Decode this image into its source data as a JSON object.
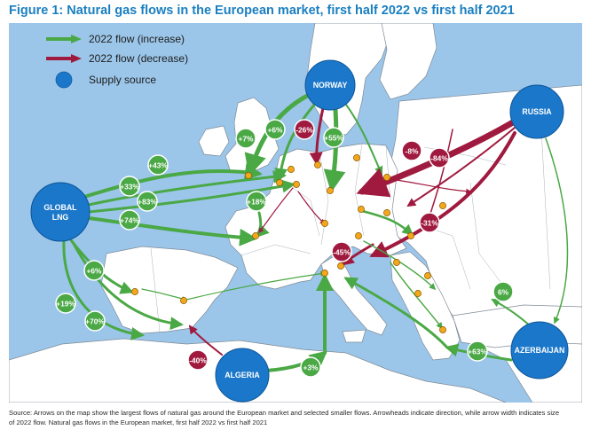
{
  "title": "Figure 1: Natural gas flows in the European market, first half 2022 vs first half 2021",
  "legend": {
    "increase": "2022 flow (increase)",
    "decrease": "2022 flow (decrease)",
    "source": "Supply source"
  },
  "colors": {
    "sea": "#9bc6e9",
    "land": "#ffffff",
    "increase": "#4aa845",
    "decrease": "#a01a3f",
    "source": "#1b77c9",
    "hub": "#f3a71c"
  },
  "sources": [
    {
      "id": "norway",
      "label": "NORWAY"
    },
    {
      "id": "russia",
      "label": "RUSSIA"
    },
    {
      "id": "global-lng",
      "label": "GLOBAL LNG"
    },
    {
      "id": "algeria",
      "label": "ALGERIA"
    },
    {
      "id": "azerbaijan",
      "label": "AZERBAIJAN"
    }
  ],
  "flows": [
    {
      "id": "plus43",
      "pct": "+43%",
      "change": "increase"
    },
    {
      "id": "plus33",
      "pct": "+33%",
      "change": "increase"
    },
    {
      "id": "plus83",
      "pct": "+83%",
      "change": "increase"
    },
    {
      "id": "plus74",
      "pct": "+74%",
      "change": "increase"
    },
    {
      "id": "plus6-iberia",
      "pct": "+6%",
      "change": "increase"
    },
    {
      "id": "plus19",
      "pct": "+19%",
      "change": "increase"
    },
    {
      "id": "plus70",
      "pct": "+70%",
      "change": "increase"
    },
    {
      "id": "plus7",
      "pct": "+7%",
      "change": "increase"
    },
    {
      "id": "plus6-north",
      "pct": "+6%",
      "change": "increase"
    },
    {
      "id": "minus26",
      "pct": "-26%",
      "change": "decrease"
    },
    {
      "id": "plus55",
      "pct": "+55%",
      "change": "increase"
    },
    {
      "id": "plus18",
      "pct": "+18%",
      "change": "increase"
    },
    {
      "id": "minus8",
      "pct": "-8%",
      "change": "decrease"
    },
    {
      "id": "minus84",
      "pct": "-84%",
      "change": "decrease"
    },
    {
      "id": "minus31",
      "pct": "-31%",
      "change": "decrease"
    },
    {
      "id": "minus45",
      "pct": "-45%",
      "change": "decrease"
    },
    {
      "id": "plus6-tap",
      "pct": "6%",
      "change": "increase"
    },
    {
      "id": "plus63",
      "pct": "+63%",
      "change": "increase"
    },
    {
      "id": "minus40",
      "pct": "-40%",
      "change": "decrease"
    },
    {
      "id": "plus3",
      "pct": "+3%",
      "change": "increase"
    }
  ],
  "footer": {
    "line1": "Source: Arrows on the map show the largest flows of natural gas around the European market and selected smaller flows. Arrowheads indicate direction, while arrow width indicates size",
    "line2": "of 2022 flow. Natural gas flows in the European market, first half 2022 vs first half 2021"
  }
}
